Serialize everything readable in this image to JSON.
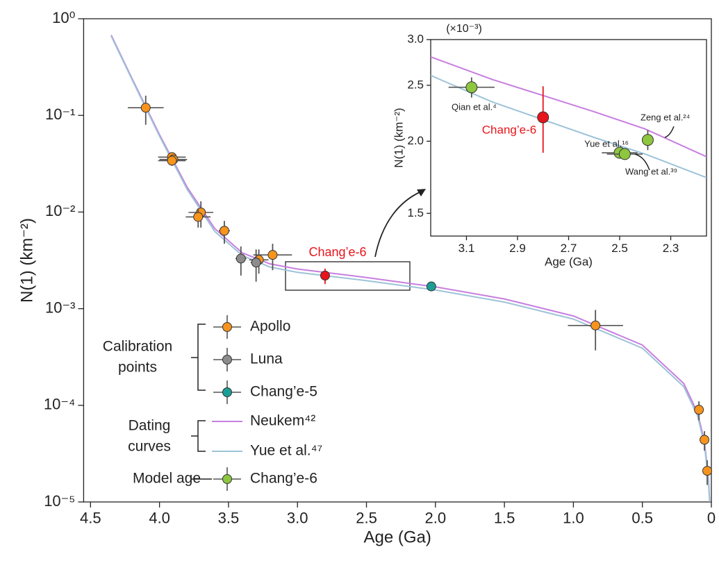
{
  "chart_data": [
    {
      "type": "scatter",
      "log_y": true,
      "x_label": "Age (Ga)",
      "y_label": "N(1) (km⁻²)",
      "xlim": [
        4.55,
        0
      ],
      "ylim": [
        1e-05,
        1
      ],
      "xticks": [
        4.5,
        {
          "value": 4,
          "label": "4.0"
        },
        3.5,
        {
          "value": 3,
          "label": "3.0"
        },
        2.5,
        {
          "value": 2,
          "label": "2.0"
        },
        1.5,
        {
          "value": 1,
          "label": "1.0"
        },
        0.5,
        0
      ],
      "yticks": [
        {
          "value": 1,
          "label": "10⁰"
        },
        {
          "value": 0.1,
          "label": "10⁻¹"
        },
        {
          "value": 0.01,
          "label": "10⁻²"
        },
        {
          "value": 0.001,
          "label": "10⁻³"
        },
        {
          "value": 0.0001,
          "label": "10⁻⁴"
        },
        {
          "value": 1e-05,
          "label": "10⁻⁵"
        }
      ],
      "legend_groups": [
        [
          "Calibration",
          "points"
        ],
        [
          "Dating",
          "curves"
        ],
        [
          "Model age"
        ]
      ],
      "series": [
        {
          "name": "Apollo",
          "color": "#f7941d",
          "x": [
            4.1,
            3.91,
            3.9,
            3.91,
            3.7,
            3.72,
            3.53,
            3.28,
            3.18,
            0.84,
            0.09,
            0.05,
            0.03
          ],
          "values": [
            0.12,
            0.037,
            0.035,
            0.034,
            0.0099,
            0.0089,
            0.0064,
            0.0032,
            0.0036,
            0.00067,
            9e-05,
            4.4e-05,
            2.1e-05
          ],
          "xerr": [
            0.13,
            0.1,
            0.1,
            0.1,
            0.09,
            0.09,
            0.04,
            0.07,
            0.14,
            0.2,
            0.02,
            0.02,
            0.02
          ],
          "yerr": [
            0.04,
            0.004,
            0.004,
            0.004,
            0.003,
            0.002,
            0.0017,
            0.0009,
            0.0011,
            0.0003,
            2e-05,
            1e-05,
            6e-06
          ]
        },
        {
          "name": "Luna",
          "color": "#8c8c8c",
          "x": [
            3.41,
            3.3
          ],
          "values": [
            0.0033,
            0.003
          ],
          "xerr": [
            0.04,
            0.04
          ],
          "yerr": [
            0.0011,
            0.0011
          ]
        },
        {
          "name": "Chang’e-5",
          "color": "#1a9e96",
          "x": [
            2.03
          ],
          "values": [
            0.0017
          ],
          "xerr": [
            0
          ],
          "yerr": [
            0
          ]
        },
        {
          "name": "Neukem⁴²",
          "color": "#c77ee0",
          "mode": "line",
          "x": [
            4.35,
            4.2,
            4.0,
            3.8,
            3.6,
            3.4,
            3.2,
            3.0,
            2.5,
            2.0,
            1.5,
            1.0,
            0.5,
            0.2,
            0.1,
            0.05,
            0.02,
            0.012
          ],
          "values": [
            0.678,
            0.242,
            0.0631,
            0.0181,
            0.00675,
            0.00378,
            0.00291,
            0.00257,
            0.0021,
            0.00168,
            0.00126,
            0.00084,
            0.00042,
            0.000168,
            8.4e-05,
            4.2e-05,
            1.68e-05,
            1e-05
          ]
        },
        {
          "name": "Yue et al.⁴⁷",
          "color": "#9dc3d8",
          "mode": "line",
          "x": [
            4.35,
            4.2,
            4.0,
            3.8,
            3.6,
            3.4,
            3.2,
            3.0,
            2.5,
            2.0,
            1.5,
            1.0,
            0.5,
            0.2,
            0.1,
            0.05,
            0.02,
            0.013
          ],
          "values": [
            0.66,
            0.236,
            0.061,
            0.0172,
            0.0063,
            0.00355,
            0.0027,
            0.00238,
            0.00195,
            0.00156,
            0.00117,
            0.00078,
            0.00039,
            0.000156,
            7.8e-05,
            3.9e-05,
            1.56e-05,
            1.01e-05
          ]
        },
        {
          "name": "Chang’e-6",
          "color": "#e8141b",
          "x": [
            2.8
          ],
          "values": [
            0.0022
          ],
          "xerr": [
            0
          ],
          "yerr": [
            0.0004
          ]
        }
      ]
    },
    {
      "type": "scatter",
      "log_y": true,
      "unit_note": "(×10⁻³)",
      "x_label": "Age (Ga)",
      "y_label": "N(1) (km⁻²)",
      "xlim": [
        3.24,
        2.16
      ],
      "ylim": [
        1.37,
        3.0
      ],
      "xticks": [
        3.1,
        2.9,
        2.7,
        2.5,
        2.3
      ],
      "yticks": [
        {
          "value": 3,
          "label": "3.0"
        },
        2.5,
        {
          "value": 2,
          "label": "2.0"
        },
        1.5
      ],
      "series": [
        {
          "name": "Chang’e-6",
          "color": "#8dc63f",
          "x": [
            3.08,
            2.5,
            2.48,
            2.39
          ],
          "values": [
            2.48,
            1.91,
            1.9,
            2.01
          ],
          "xerr": [
            0.09,
            0.07,
            0.07,
            0
          ],
          "yerr": [
            0.1,
            0.03,
            0.03,
            0.08
          ],
          "labels": [
            "Qian et al.⁴",
            "Yue et al.¹⁶",
            "Wang et al.³⁹",
            "Zeng et al.²⁴"
          ]
        },
        {
          "name": "Chang’e-6",
          "color": "#e8141b",
          "x": [
            2.8
          ],
          "values": [
            2.2
          ],
          "xerr": [
            0
          ],
          "yerr": [
            0.29
          ]
        },
        {
          "color": "#c77ee0",
          "mode": "line",
          "x": [
            3.24,
            3.0,
            2.8,
            2.6,
            2.4,
            2.16
          ],
          "values": [
            2.8,
            2.56,
            2.4,
            2.25,
            2.1,
            1.88
          ]
        },
        {
          "color": "#9dc3d8",
          "mode": "line",
          "x": [
            3.24,
            3.0,
            2.8,
            2.6,
            2.4,
            2.16
          ],
          "values": [
            2.6,
            2.34,
            2.18,
            2.03,
            1.9,
            1.73
          ]
        }
      ]
    }
  ]
}
